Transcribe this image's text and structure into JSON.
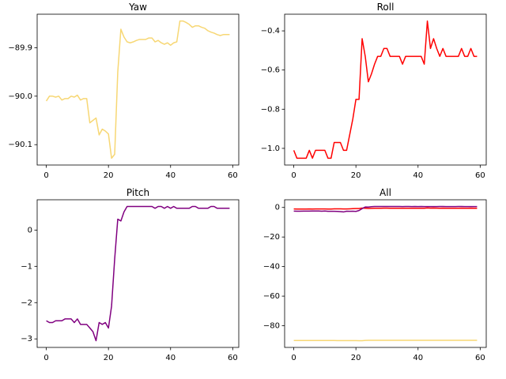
{
  "chart_data": [
    {
      "type": "line",
      "title": "Yaw",
      "color": "#f7d774",
      "x": [
        0,
        1,
        2,
        3,
        4,
        5,
        6,
        7,
        8,
        9,
        10,
        11,
        12,
        13,
        14,
        15,
        16,
        17,
        18,
        19,
        20,
        21,
        22,
        23,
        24,
        25,
        26,
        27,
        28,
        29,
        30,
        31,
        32,
        33,
        34,
        35,
        36,
        37,
        38,
        39,
        40,
        41,
        42,
        43,
        44,
        45,
        46,
        47,
        48,
        49,
        50,
        51,
        52,
        53,
        54,
        55,
        56,
        57,
        58,
        59
      ],
      "values": [
        -90.01,
        -90.0,
        -90.0,
        -90.002,
        -90.0,
        -90.008,
        -90.005,
        -90.005,
        -90.0,
        -90.002,
        -89.998,
        -90.008,
        -90.005,
        -90.005,
        -90.055,
        -90.05,
        -90.045,
        -90.08,
        -90.068,
        -90.072,
        -90.078,
        -90.128,
        -90.12,
        -89.95,
        -89.862,
        -89.878,
        -89.888,
        -89.89,
        -89.888,
        -89.885,
        -89.883,
        -89.883,
        -89.883,
        -89.88,
        -89.88,
        -89.888,
        -89.885,
        -89.89,
        -89.893,
        -89.89,
        -89.895,
        -89.89,
        -89.888,
        -89.845,
        -89.845,
        -89.848,
        -89.852,
        -89.858,
        -89.855,
        -89.855,
        -89.858,
        -89.86,
        -89.865,
        -89.868,
        -89.87,
        -89.873,
        -89.875,
        -89.873,
        -89.873,
        -89.873
      ],
      "xlim": [
        -2.95,
        61.95
      ],
      "xticks": [
        0,
        20,
        40,
        60
      ],
      "ylim": [
        -90.142,
        -89.831
      ],
      "yticks": [
        {
          "value": -90.1,
          "label": "−90.1"
        },
        {
          "value": -90.0,
          "label": "−90.0"
        },
        {
          "value": -89.9,
          "label": "−89.9"
        }
      ]
    },
    {
      "type": "line",
      "title": "Roll",
      "color": "#ff0000",
      "x": [
        0,
        1,
        2,
        3,
        4,
        5,
        6,
        7,
        8,
        9,
        10,
        11,
        12,
        13,
        14,
        15,
        16,
        17,
        18,
        19,
        20,
        21,
        22,
        23,
        24,
        25,
        26,
        27,
        28,
        29,
        30,
        31,
        32,
        33,
        34,
        35,
        36,
        37,
        38,
        39,
        40,
        41,
        42,
        43,
        44,
        45,
        46,
        47,
        48,
        49,
        50,
        51,
        52,
        53,
        54,
        55,
        56,
        57,
        58,
        59
      ],
      "values": [
        -1.01,
        -1.05,
        -1.05,
        -1.05,
        -1.05,
        -1.01,
        -1.05,
        -1.01,
        -1.01,
        -1.01,
        -1.01,
        -1.05,
        -1.05,
        -0.97,
        -0.97,
        -0.97,
        -1.01,
        -1.01,
        -0.93,
        -0.85,
        -0.75,
        -0.75,
        -0.44,
        -0.53,
        -0.66,
        -0.62,
        -0.57,
        -0.53,
        -0.53,
        -0.49,
        -0.49,
        -0.53,
        -0.53,
        -0.53,
        -0.53,
        -0.57,
        -0.53,
        -0.53,
        -0.53,
        -0.53,
        -0.53,
        -0.53,
        -0.57,
        -0.35,
        -0.49,
        -0.44,
        -0.49,
        -0.53,
        -0.49,
        -0.53,
        -0.53,
        -0.53,
        -0.53,
        -0.53,
        -0.49,
        -0.53,
        -0.53,
        -0.49,
        -0.53,
        -0.53
      ],
      "xlim": [
        -2.95,
        61.95
      ],
      "xticks": [
        0,
        20,
        40,
        60
      ],
      "ylim": [
        -1.085,
        -0.315
      ],
      "yticks": [
        {
          "value": -1.0,
          "label": "−1.0"
        },
        {
          "value": -0.8,
          "label": "−0.8"
        },
        {
          "value": -0.6,
          "label": "−0.6"
        },
        {
          "value": -0.4,
          "label": "−0.4"
        }
      ]
    },
    {
      "type": "line",
      "title": "Pitch",
      "color": "#800080",
      "x": [
        0,
        1,
        2,
        3,
        4,
        5,
        6,
        7,
        8,
        9,
        10,
        11,
        12,
        13,
        14,
        15,
        16,
        17,
        18,
        19,
        20,
        21,
        22,
        23,
        24,
        25,
        26,
        27,
        28,
        29,
        30,
        31,
        32,
        33,
        34,
        35,
        36,
        37,
        38,
        39,
        40,
        41,
        42,
        43,
        44,
        45,
        46,
        47,
        48,
        49,
        50,
        51,
        52,
        53,
        54,
        55,
        56,
        57,
        58,
        59
      ],
      "values": [
        -2.5,
        -2.55,
        -2.55,
        -2.5,
        -2.5,
        -2.5,
        -2.45,
        -2.45,
        -2.45,
        -2.55,
        -2.45,
        -2.6,
        -2.6,
        -2.6,
        -2.7,
        -2.8,
        -3.05,
        -2.55,
        -2.6,
        -2.55,
        -2.7,
        -2.1,
        -0.8,
        0.3,
        0.25,
        0.5,
        0.65,
        0.65,
        0.65,
        0.65,
        0.65,
        0.65,
        0.65,
        0.65,
        0.65,
        0.6,
        0.65,
        0.65,
        0.6,
        0.65,
        0.6,
        0.65,
        0.6,
        0.6,
        0.6,
        0.6,
        0.6,
        0.65,
        0.65,
        0.6,
        0.6,
        0.6,
        0.6,
        0.65,
        0.65,
        0.6,
        0.6,
        0.6,
        0.6,
        0.6
      ],
      "xlim": [
        -2.95,
        61.95
      ],
      "xticks": [
        0,
        20,
        40,
        60
      ],
      "ylim": [
        -3.235,
        0.835
      ],
      "yticks": [
        {
          "value": -3,
          "label": "−3"
        },
        {
          "value": -2,
          "label": "−2"
        },
        {
          "value": -1,
          "label": "−1"
        },
        0
      ]
    },
    {
      "type": "line",
      "title": "All",
      "x": [
        0,
        1,
        2,
        3,
        4,
        5,
        6,
        7,
        8,
        9,
        10,
        11,
        12,
        13,
        14,
        15,
        16,
        17,
        18,
        19,
        20,
        21,
        22,
        23,
        24,
        25,
        26,
        27,
        28,
        29,
        30,
        31,
        32,
        33,
        34,
        35,
        36,
        37,
        38,
        39,
        40,
        41,
        42,
        43,
        44,
        45,
        46,
        47,
        48,
        49,
        50,
        51,
        52,
        53,
        54,
        55,
        56,
        57,
        58,
        59
      ],
      "series": [
        {
          "color": "#f7d774",
          "values": [
            -90.01,
            -90.0,
            -90.0,
            -90.002,
            -90.0,
            -90.008,
            -90.005,
            -90.005,
            -90.0,
            -90.002,
            -89.998,
            -90.008,
            -90.005,
            -90.005,
            -90.055,
            -90.05,
            -90.045,
            -90.08,
            -90.068,
            -90.072,
            -90.078,
            -90.128,
            -90.12,
            -89.95,
            -89.862,
            -89.878,
            -89.888,
            -89.89,
            -89.888,
            -89.885,
            -89.883,
            -89.883,
            -89.883,
            -89.88,
            -89.88,
            -89.888,
            -89.885,
            -89.89,
            -89.893,
            -89.89,
            -89.895,
            -89.89,
            -89.888,
            -89.845,
            -89.845,
            -89.848,
            -89.852,
            -89.858,
            -89.855,
            -89.855,
            -89.858,
            -89.86,
            -89.865,
            -89.868,
            -89.87,
            -89.873,
            -89.875,
            -89.873,
            -89.873,
            -89.873
          ]
        },
        {
          "color": "#ff0000",
          "values": [
            -1.01,
            -1.05,
            -1.05,
            -1.05,
            -1.05,
            -1.01,
            -1.05,
            -1.01,
            -1.01,
            -1.01,
            -1.01,
            -1.05,
            -1.05,
            -0.97,
            -0.97,
            -0.97,
            -1.01,
            -1.01,
            -0.93,
            -0.85,
            -0.75,
            -0.75,
            -0.44,
            -0.53,
            -0.66,
            -0.62,
            -0.57,
            -0.53,
            -0.53,
            -0.49,
            -0.49,
            -0.53,
            -0.53,
            -0.53,
            -0.53,
            -0.57,
            -0.53,
            -0.53,
            -0.53,
            -0.53,
            -0.53,
            -0.53,
            -0.57,
            -0.35,
            -0.49,
            -0.44,
            -0.49,
            -0.53,
            -0.49,
            -0.53,
            -0.53,
            -0.53,
            -0.53,
            -0.53,
            -0.49,
            -0.53,
            -0.53,
            -0.49,
            -0.53,
            -0.53
          ]
        },
        {
          "color": "#800080",
          "values": [
            -2.5,
            -2.55,
            -2.55,
            -2.5,
            -2.5,
            -2.5,
            -2.45,
            -2.45,
            -2.45,
            -2.55,
            -2.45,
            -2.6,
            -2.6,
            -2.6,
            -2.7,
            -2.8,
            -3.05,
            -2.55,
            -2.6,
            -2.55,
            -2.7,
            -2.1,
            -0.8,
            0.3,
            0.25,
            0.5,
            0.65,
            0.65,
            0.65,
            0.65,
            0.65,
            0.65,
            0.65,
            0.65,
            0.65,
            0.6,
            0.65,
            0.65,
            0.6,
            0.65,
            0.6,
            0.65,
            0.6,
            0.6,
            0.6,
            0.6,
            0.6,
            0.65,
            0.65,
            0.6,
            0.6,
            0.6,
            0.6,
            0.65,
            0.65,
            0.6,
            0.6,
            0.6,
            0.6,
            0.6
          ]
        }
      ],
      "xlim": [
        -2.95,
        61.95
      ],
      "xticks": [
        0,
        20,
        40,
        60
      ],
      "ylim": [
        -94.67,
        5.19
      ],
      "yticks": [
        {
          "value": -80,
          "label": "−80"
        },
        {
          "value": -60,
          "label": "−60"
        },
        {
          "value": -40,
          "label": "−40"
        },
        {
          "value": -20,
          "label": "−20"
        },
        0
      ]
    }
  ]
}
